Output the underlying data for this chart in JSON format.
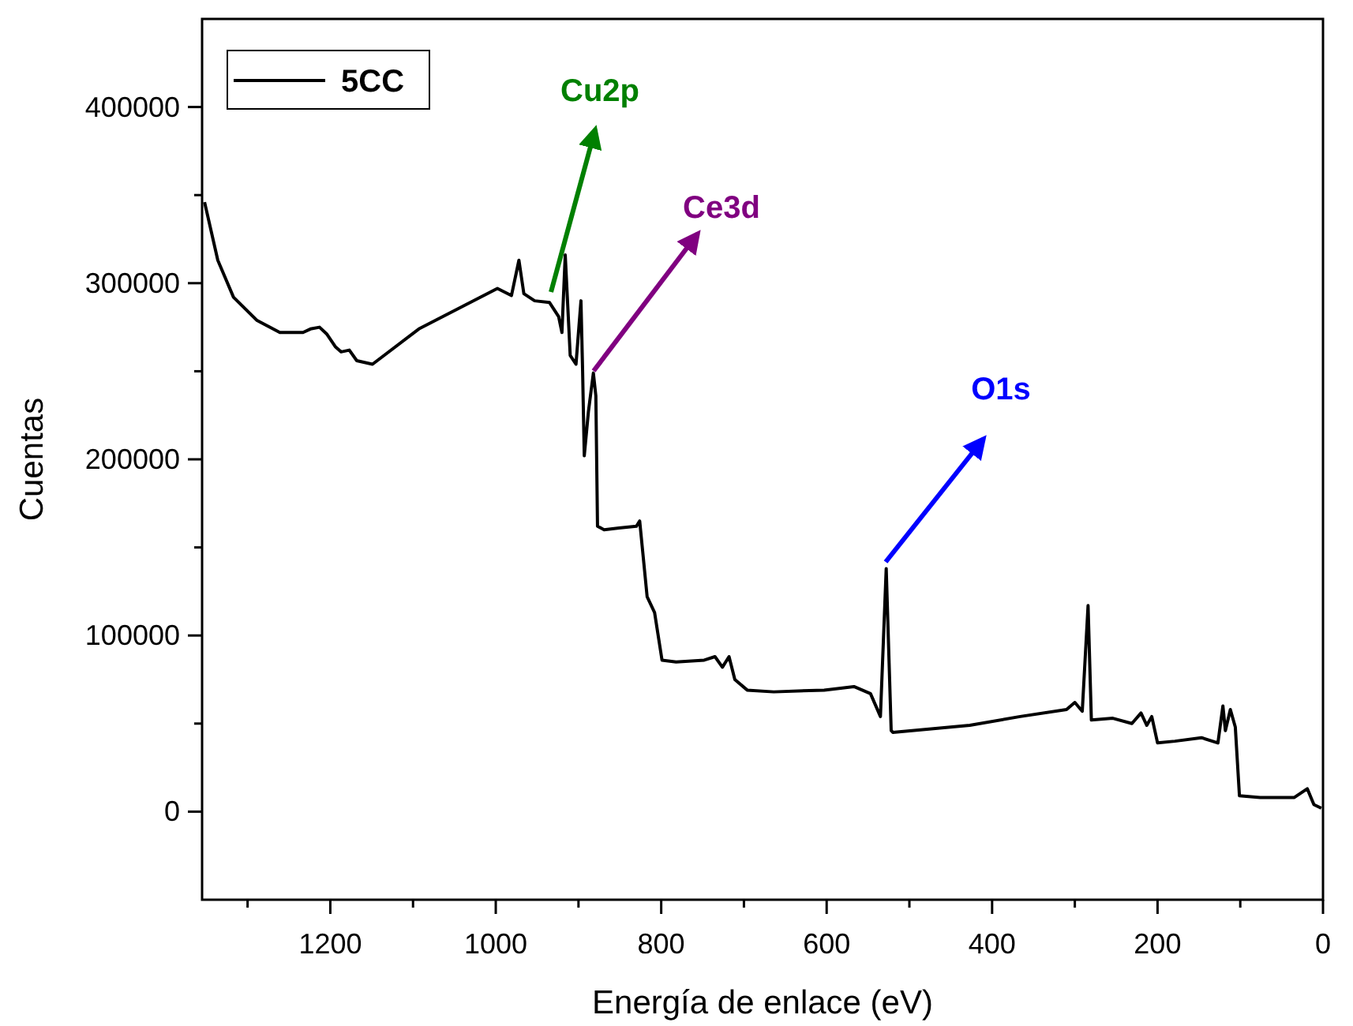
{
  "chart_data": {
    "type": "line",
    "xlabel": "Energía de enlace (eV)",
    "ylabel": "Cuentas",
    "xlim": [
      1355,
      0
    ],
    "xticks": [
      {
        "value": 1300,
        "label": null
      },
      1200,
      {
        "value": 1100,
        "label": null
      },
      1000,
      {
        "value": 900,
        "label": null
      },
      800,
      {
        "value": 700,
        "label": null
      },
      600,
      {
        "value": 500,
        "label": null
      },
      400,
      {
        "value": 300,
        "label": null
      },
      200,
      {
        "value": 100,
        "label": null
      },
      0
    ],
    "ylim": [
      -50000,
      450000
    ],
    "yticks": [
      0,
      {
        "value": 50000,
        "label": null
      },
      100000,
      {
        "value": 150000,
        "label": null
      },
      200000,
      {
        "value": 250000,
        "label": null
      },
      300000,
      {
        "value": 350000,
        "label": null
      },
      400000
    ],
    "grid": false,
    "legend": "top left",
    "marker": "none",
    "line_style": "solid",
    "x": [
      1352,
      1336,
      1317,
      1289,
      1261,
      1233,
      1224,
      1213,
      1204,
      1194,
      1187,
      1177,
      1168,
      1149,
      1093,
      998,
      981,
      972,
      966,
      953,
      935,
      924,
      920,
      916,
      910,
      903,
      897,
      895,
      893,
      888,
      882,
      879,
      877,
      869,
      851,
      830,
      826,
      817,
      808,
      799,
      782,
      748,
      735,
      726,
      718,
      711,
      696,
      664,
      603,
      567,
      547,
      535,
      528,
      522,
      520,
      427,
      366,
      310,
      300,
      291,
      284,
      280,
      254,
      231,
      220,
      213,
      207,
      200,
      179,
      147,
      127,
      121,
      118,
      112,
      106,
      101,
      76,
      35,
      19,
      11,
      2
    ],
    "series": [
      {
        "name": "5CC",
        "color": "#000000",
        "values": [
          346000,
          313000,
          292000,
          279000,
          272000,
          272000,
          274000,
          275000,
          271000,
          264000,
          261000,
          262000,
          256000,
          254000,
          274000,
          297000,
          293000,
          313000,
          294000,
          290000,
          289000,
          281000,
          272000,
          316000,
          259000,
          254000,
          290000,
          250000,
          202000,
          227000,
          249000,
          236000,
          162000,
          160000,
          161000,
          162000,
          165000,
          122000,
          113000,
          86000,
          85000,
          86000,
          88000,
          82000,
          88000,
          75000,
          69000,
          68000,
          69000,
          71000,
          67000,
          54000,
          138000,
          46000,
          45000,
          49000,
          54000,
          58000,
          62000,
          57000,
          117000,
          52000,
          53000,
          50000,
          56000,
          49000,
          54000,
          39000,
          40000,
          42000,
          39000,
          60000,
          46000,
          58000,
          48000,
          9000,
          8000,
          8000,
          13000,
          4000,
          2000
        ]
      }
    ],
    "annotations": [
      "Cu2p",
      "Ce3d",
      "O1s"
    ]
  }
}
